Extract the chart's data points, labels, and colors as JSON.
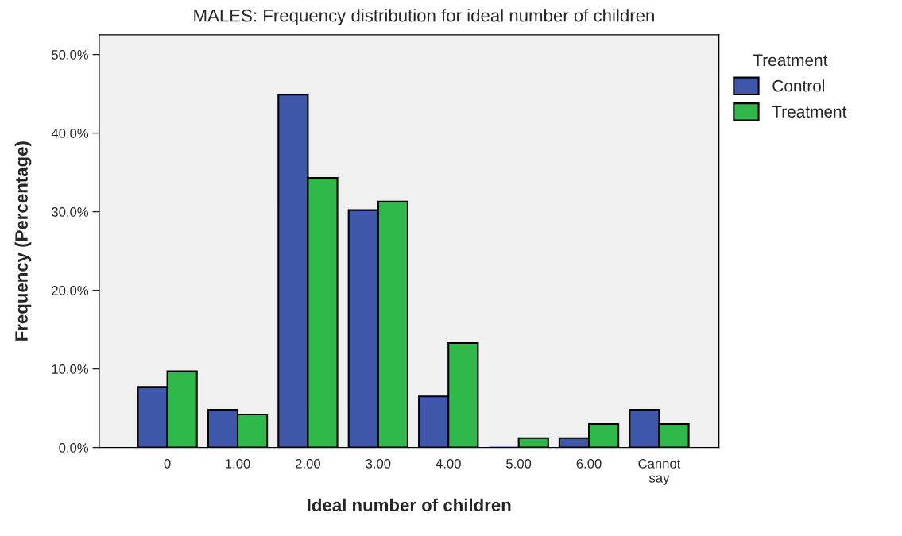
{
  "chart_data": {
    "type": "bar",
    "title": "MALES: Frequency distribution for ideal number of children",
    "xlabel": "Ideal number of children",
    "ylabel": "Frequency (Percentage)",
    "legend_title": "Treatment",
    "legend": "top right",
    "categories": [
      "0",
      "1.00",
      "2.00",
      "3.00",
      "4.00",
      "5.00",
      "6.00",
      "Cannot\nsay"
    ],
    "series": [
      {
        "name": "Control",
        "color": "#3f57ab",
        "values": [
          7.7,
          4.8,
          44.9,
          30.2,
          6.5,
          0,
          1.2,
          4.8
        ]
      },
      {
        "name": "Treatment",
        "color": "#2fb84a",
        "values": [
          9.7,
          4.2,
          34.3,
          31.3,
          13.3,
          1.2,
          3.0,
          3.0
        ]
      }
    ],
    "ylim": [
      0,
      52.5
    ],
    "yticks": [
      {
        "value": 0,
        "label": "0.0%"
      },
      {
        "value": 10,
        "label": "10.0%"
      },
      {
        "value": 20,
        "label": "20.0%"
      },
      {
        "value": 30,
        "label": "30.0%"
      },
      {
        "value": 40,
        "label": "40.0%"
      },
      {
        "value": 50,
        "label": "50.0%"
      }
    ],
    "grid": false
  }
}
